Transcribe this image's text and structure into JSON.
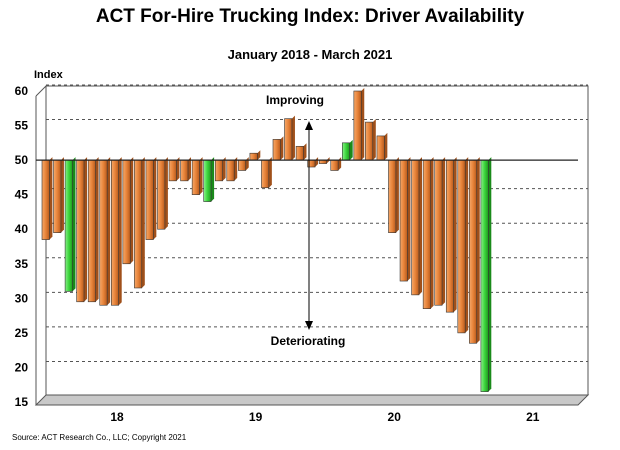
{
  "chart_data": {
    "type": "bar",
    "title": "ACT For-Hire Trucking Index: Driver Availability",
    "subtitle": "January 2018 - March 2021",
    "ylabel": "Index",
    "xlabel": "",
    "baseline": 50,
    "ylim": [
      15,
      60
    ],
    "yticks": [
      15,
      20,
      25,
      30,
      35,
      40,
      45,
      50,
      55,
      60
    ],
    "grid": true,
    "x_ticks": [
      {
        "label": "18",
        "index": 6
      },
      {
        "label": "19",
        "index": 18
      },
      {
        "label": "20",
        "index": 30
      },
      {
        "label": "21",
        "index": 42
      }
    ],
    "annotations": [
      "Improving",
      "Deteriorating"
    ],
    "series": [
      {
        "values": [
          38.5,
          39.5,
          31,
          29.5,
          29.5,
          29,
          29,
          35,
          31.5,
          38.5,
          40,
          47,
          47,
          45,
          44,
          47,
          47,
          48.5,
          51,
          46,
          53,
          56,
          52,
          49,
          49.5,
          48.5,
          52.5,
          60,
          55.5,
          53.5,
          39.5,
          32.5,
          30.5,
          28.5,
          29,
          28,
          25,
          23.5,
          16.5
        ],
        "colors": [
          "o",
          "o",
          "g",
          "o",
          "o",
          "o",
          "o",
          "o",
          "o",
          "o",
          "o",
          "o",
          "o",
          "o",
          "g",
          "o",
          "o",
          "o",
          "o",
          "o",
          "o",
          "o",
          "o",
          "o",
          "o",
          "o",
          "g",
          "o",
          "o",
          "o",
          "o",
          "o",
          "o",
          "o",
          "o",
          "o",
          "o",
          "o",
          "g"
        ]
      }
    ],
    "colors": {
      "orange": "#e8843a",
      "green": "#3dd63d",
      "grid": "#555555",
      "plot_border": "#555555"
    }
  },
  "source": "Source: ACT Research Co., LLC; Copyright 2021"
}
